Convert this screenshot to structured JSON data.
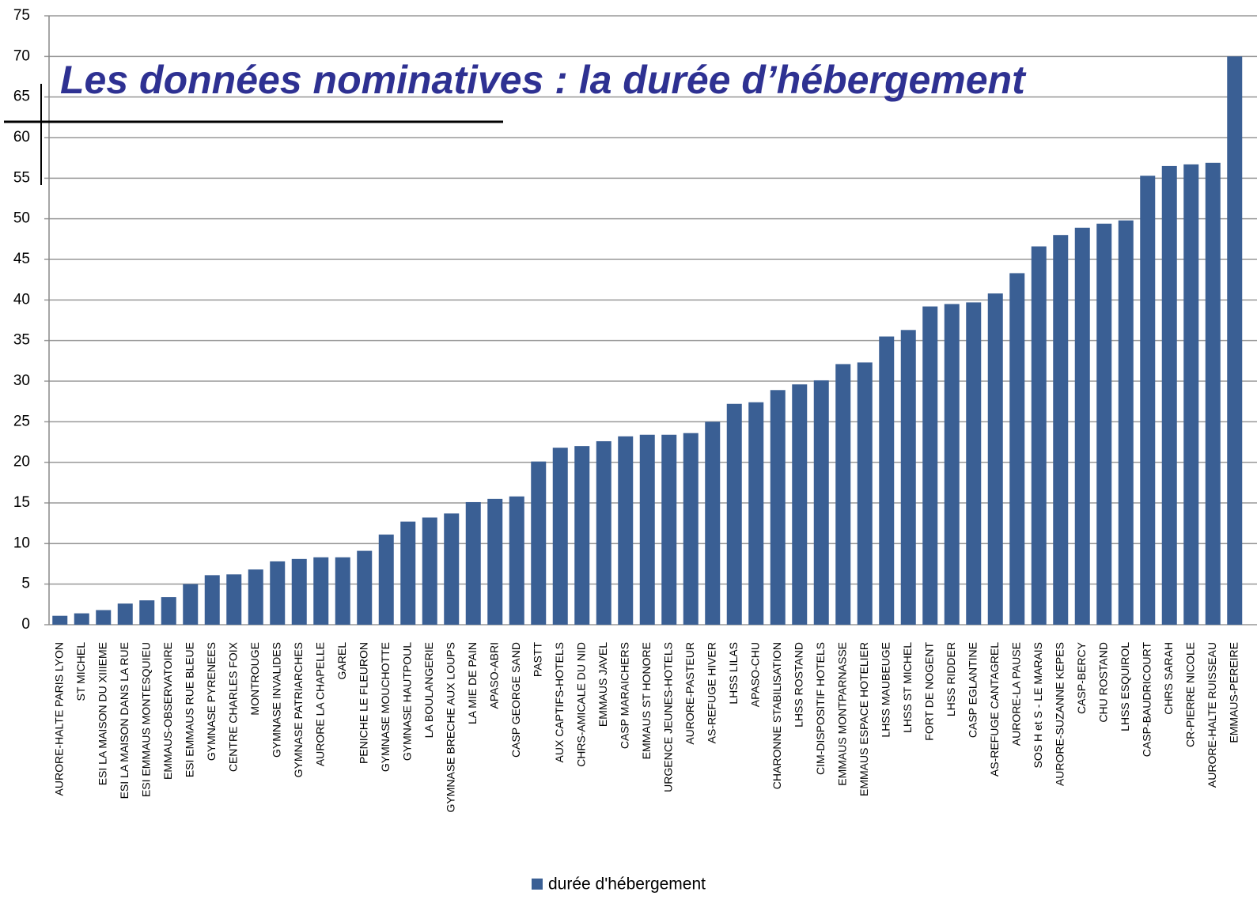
{
  "chart_data": {
    "type": "bar",
    "title": "Les données nominatives : la durée d’hébergement",
    "categories": [
      "AURORE-HALTE PARIS LYON",
      "ST MICHEL",
      "ESI LA MAISON DU XIIIEME",
      "ESI LA MAISON DANS LA RUE",
      "ESI EMMAUS MONTESQUIEU",
      "EMMAUS-OBSERVATOIRE",
      "ESI EMMAUS RUE BLEUE",
      "GYMNASE PYRENEES",
      "CENTRE CHARLES FOIX",
      "MONTROUGE",
      "GYMNASE INVALIDES",
      "GYMNASE PATRIARCHES",
      "AURORE LA CHAPELLE",
      "GAREL",
      "PENICHE LE FLEURON",
      "GYMNASE MOUCHOTTE",
      "GYMNASE HAUTPOUL",
      "LA BOULANGERIE",
      "GYMNASE BRECHE AUX LOUPS",
      "LA MIE DE PAIN",
      "APASO-ABRI",
      "CASP GEORGE SAND",
      "PASTT",
      "AUX CAPTIFS-HOTELS",
      "CHRS-AMICALE DU NID",
      "EMMAUS JAVEL",
      "CASP MARAICHERS",
      "EMMAUS ST HONORE",
      "URGENCE JEUNES-HOTELS",
      "AURORE-PASTEUR",
      "AS-REFUGE HIVER",
      "LHSS LILAS",
      "APASO-CHU",
      "CHARONNE STABILISATION",
      "LHSS ROSTAND",
      "CIM-DISPOSITIF HOTELS",
      "EMMAUS MONTPARNASSE",
      "EMMAUS ESPACE HOTELIER",
      "LHSS MAUBEUGE",
      "LHSS ST MICHEL",
      "FORT DE NOGENT",
      "LHSS RIDDER",
      "CASP EGLANTINE",
      "AS-REFUGE CANTAGREL",
      "AURORE-LA PAUSE",
      "SOS H et S - LE MARAIS",
      "AURORE-SUZANNE KEPES",
      "CASP-BERCY",
      "CHU ROSTAND",
      "LHSS ESQUIROL",
      "CASP-BAUDRICOURT",
      "CHRS SARAH",
      "CR-PIERRE NICOLE",
      "AURORE-HALTE RUISSEAU",
      "EMMAUS-PEREIRE"
    ],
    "series": [
      {
        "name": "durée d'hébergement",
        "color": "#3a5f94",
        "values": [
          1.1,
          1.4,
          1.8,
          2.6,
          3.0,
          3.4,
          5.0,
          6.1,
          6.2,
          6.8,
          7.8,
          8.1,
          8.3,
          8.3,
          9.1,
          11.1,
          12.7,
          13.2,
          13.7,
          15.1,
          15.5,
          15.8,
          20.1,
          21.8,
          22.0,
          22.6,
          23.2,
          23.4,
          23.4,
          23.6,
          25.0,
          27.2,
          27.4,
          28.9,
          29.6,
          30.1,
          32.1,
          32.3,
          35.5,
          36.3,
          39.2,
          39.5,
          39.7,
          40.8,
          43.3,
          46.6,
          48.0,
          48.9,
          49.4,
          49.8,
          55.3,
          56.5,
          56.7,
          56.9,
          70
        ]
      }
    ],
    "ylim": [
      0,
      75
    ],
    "yticks": [
      0,
      5,
      10,
      15,
      20,
      25,
      30,
      35,
      40,
      45,
      50,
      55,
      60,
      65,
      70,
      75
    ],
    "grid": true
  }
}
